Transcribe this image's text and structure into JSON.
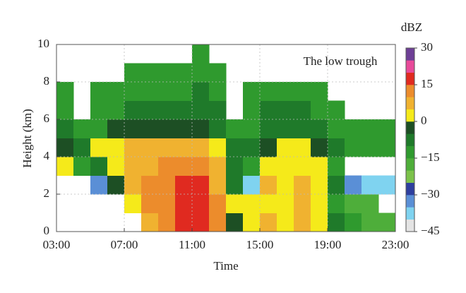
{
  "chart_data": {
    "type": "heatmap",
    "annotation": "The low trough",
    "xlabel": "Time",
    "ylabel": "Height (km)",
    "colorbar_label": "dBZ",
    "x": [
      3,
      4,
      5,
      6,
      7,
      8,
      9,
      10,
      11,
      12,
      13,
      14,
      15,
      16,
      17,
      18,
      19,
      20,
      21,
      22,
      23
    ],
    "y": [
      0,
      1,
      2,
      3,
      4,
      5,
      6,
      7,
      8,
      9,
      10
    ],
    "z": [
      [
        null,
        null,
        null,
        2,
        -5,
        -8,
        -12,
        -14,
        null,
        null
      ],
      [
        null,
        null,
        null,
        -15,
        -10,
        -12,
        null,
        null,
        null,
        null
      ],
      [
        null,
        null,
        -35,
        -10,
        0,
        -12,
        -14,
        -15,
        null,
        null
      ],
      [
        null,
        null,
        -5,
        3,
        2,
        -5,
        -12,
        -14,
        null,
        null
      ],
      [
        null,
        2,
        5,
        7,
        5,
        -5,
        -10,
        -14,
        -15,
        null
      ],
      [
        8,
        12,
        10,
        8,
        5,
        -5,
        -10,
        -13,
        -15,
        null
      ],
      [
        12,
        14,
        12,
        10,
        6,
        -5,
        -10,
        -13,
        -15,
        null
      ],
      [
        16,
        17,
        17,
        12,
        5,
        -5,
        -10,
        -12,
        -15,
        null
      ],
      [
        17,
        16,
        16,
        12,
        8,
        -5,
        -8,
        -10,
        -12,
        -15
      ],
      [
        12,
        10,
        8,
        7,
        3,
        -6,
        -10,
        -12,
        -14,
        null
      ],
      [
        -5,
        0,
        -8,
        -8,
        -10,
        -12,
        null,
        null,
        null,
        null
      ],
      [
        2,
        0,
        -40,
        -15,
        -10,
        -12,
        -12,
        -14,
        null,
        null
      ],
      [
        6,
        4,
        5,
        3,
        -5,
        -8,
        -10,
        -12,
        null,
        null
      ],
      [
        4,
        3,
        3,
        3,
        2,
        -8,
        -10,
        -12,
        null,
        null
      ],
      [
        5,
        6,
        5,
        3,
        2,
        -8,
        -10,
        -12,
        null,
        null
      ],
      [
        2,
        3,
        4,
        2,
        -5,
        -10,
        -12,
        -13,
        null,
        null
      ],
      [
        -8,
        -12,
        -10,
        -12,
        -10,
        -12,
        -14,
        null,
        null,
        null
      ],
      [
        -15,
        -18,
        -35,
        null,
        -12,
        -14,
        null,
        null,
        null,
        null
      ],
      [
        -18,
        -20,
        -40,
        null,
        -14,
        -15,
        null,
        null,
        null,
        null
      ],
      [
        -20,
        null,
        -40,
        null,
        -15,
        -14,
        null,
        null,
        null,
        null
      ]
    ],
    "xlim": [
      3,
      23
    ],
    "xticks": [
      {
        "value": 3,
        "label": "03:00"
      },
      {
        "value": 7,
        "label": "07:00"
      },
      {
        "value": 11,
        "label": "11:00"
      },
      {
        "value": 15,
        "label": "15:00"
      },
      {
        "value": 19,
        "label": "19:00"
      },
      {
        "value": 23,
        "label": "23:00"
      }
    ],
    "ylim": [
      0,
      10
    ],
    "yticks": [
      0,
      2,
      4,
      6,
      8,
      10
    ],
    "grid": true,
    "clim": [
      -45,
      30
    ],
    "cticks": [
      {
        "value": 30,
        "label": "30"
      },
      {
        "value": 15,
        "label": "15"
      },
      {
        "value": 0,
        "label": "0"
      },
      {
        "value": -15,
        "label": "−15"
      },
      {
        "value": -30,
        "label": "−30"
      },
      {
        "value": -45,
        "label": "−45"
      }
    ],
    "colors": [
      "#e4e4e4",
      "#7fd3f0",
      "#5a8fd6",
      "#2e3f9e",
      "#7cc24a",
      "#4eae3a",
      "#2f9a2e",
      "#1f7a2a",
      "#1d4f24",
      "#f5ea1a",
      "#f0b230",
      "#ec8c2c",
      "#e02a20",
      "#e84a9a",
      "#6e3f96"
    ]
  }
}
